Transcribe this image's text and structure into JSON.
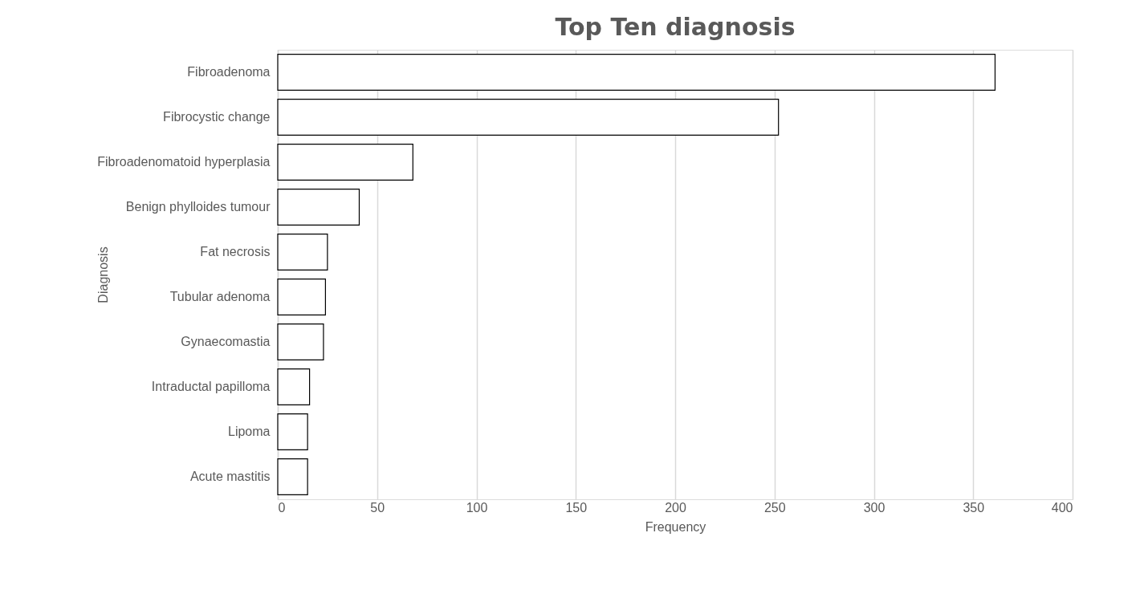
{
  "chart_data": {
    "type": "bar",
    "orientation": "horizontal",
    "title": "Top Ten diagnosis",
    "xlabel": "Frequency",
    "ylabel": "Diagnosis",
    "categories": [
      "Fibroadenoma",
      "Fibrocystic change",
      "Fibroadenomatoid hyperplasia",
      "Benign phylloides tumour",
      "Fat necrosis",
      "Tubular adenoma",
      "Gynaecomastia",
      "Intraductal papilloma",
      "Lipoma",
      "Acute mastitis"
    ],
    "values": [
      361,
      252,
      68,
      41,
      25,
      24,
      23,
      16,
      15,
      15
    ],
    "color": "#ffffff",
    "xlim": [
      0,
      400
    ],
    "xticks": [
      0,
      50,
      100,
      150,
      200,
      250,
      300,
      350,
      400
    ],
    "grid": "x"
  }
}
